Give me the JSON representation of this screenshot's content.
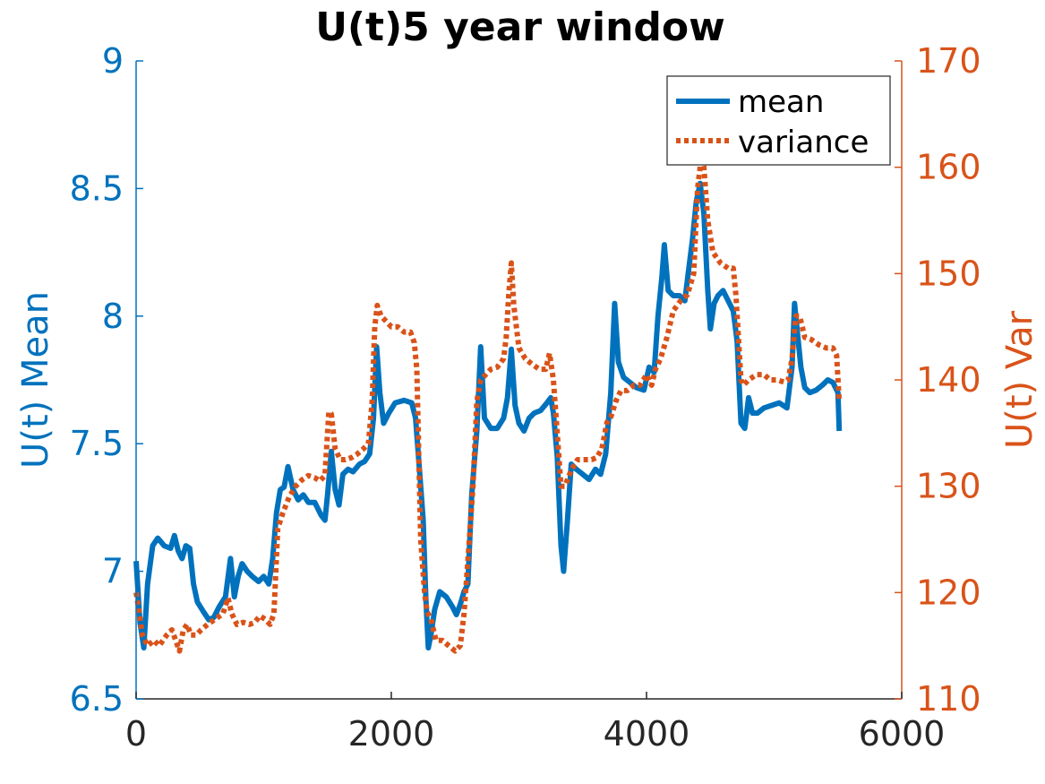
{
  "chart_data": {
    "type": "line",
    "title": "U(t)5 year window",
    "xlabel": "",
    "ylabel_left": "U(t) Mean",
    "ylabel_right": "U(t) Var",
    "xlim": [
      0,
      6000
    ],
    "ylim_left": [
      6.5,
      9
    ],
    "ylim_right": [
      110,
      170
    ],
    "xticks": [
      "0",
      "2000",
      "4000",
      "6000"
    ],
    "yticks_left": [
      "6.5",
      "7",
      "7.5",
      "8",
      "8.5",
      "9"
    ],
    "yticks_right": [
      "110",
      "120",
      "130",
      "140",
      "150",
      "160",
      "170"
    ],
    "grid": false,
    "legend_position": "top-right",
    "colors": {
      "mean": "#0072BD",
      "variance": "#D95319",
      "axis": "#262626"
    },
    "series": [
      {
        "name": "mean",
        "axis": "left",
        "style": "solid",
        "points": [
          [
            0,
            7.04
          ],
          [
            30,
            6.8
          ],
          [
            60,
            6.7
          ],
          [
            90,
            6.95
          ],
          [
            130,
            7.1
          ],
          [
            170,
            7.13
          ],
          [
            220,
            7.1
          ],
          [
            270,
            7.09
          ],
          [
            300,
            7.14
          ],
          [
            330,
            7.08
          ],
          [
            360,
            7.05
          ],
          [
            390,
            7.1
          ],
          [
            420,
            7.09
          ],
          [
            450,
            6.95
          ],
          [
            480,
            6.88
          ],
          [
            530,
            6.84
          ],
          [
            570,
            6.81
          ],
          [
            610,
            6.82
          ],
          [
            650,
            6.86
          ],
          [
            700,
            6.9
          ],
          [
            740,
            7.05
          ],
          [
            770,
            6.9
          ],
          [
            800,
            6.98
          ],
          [
            830,
            7.03
          ],
          [
            870,
            7.0
          ],
          [
            910,
            6.98
          ],
          [
            960,
            6.96
          ],
          [
            1000,
            6.98
          ],
          [
            1040,
            6.95
          ],
          [
            1070,
            7.05
          ],
          [
            1100,
            7.23
          ],
          [
            1130,
            7.32
          ],
          [
            1160,
            7.33
          ],
          [
            1190,
            7.41
          ],
          [
            1230,
            7.32
          ],
          [
            1270,
            7.28
          ],
          [
            1310,
            7.3
          ],
          [
            1350,
            7.27
          ],
          [
            1400,
            7.27
          ],
          [
            1450,
            7.22
          ],
          [
            1480,
            7.2
          ],
          [
            1500,
            7.3
          ],
          [
            1530,
            7.47
          ],
          [
            1560,
            7.32
          ],
          [
            1590,
            7.26
          ],
          [
            1620,
            7.38
          ],
          [
            1660,
            7.4
          ],
          [
            1700,
            7.39
          ],
          [
            1750,
            7.42
          ],
          [
            1790,
            7.43
          ],
          [
            1830,
            7.46
          ],
          [
            1860,
            7.6
          ],
          [
            1885,
            7.88
          ],
          [
            1910,
            7.7
          ],
          [
            1940,
            7.58
          ],
          [
            1980,
            7.62
          ],
          [
            2030,
            7.66
          ],
          [
            2100,
            7.67
          ],
          [
            2160,
            7.66
          ],
          [
            2190,
            7.6
          ],
          [
            2220,
            7.4
          ],
          [
            2250,
            7.2
          ],
          [
            2270,
            6.9
          ],
          [
            2290,
            6.7
          ],
          [
            2310,
            6.75
          ],
          [
            2340,
            6.85
          ],
          [
            2380,
            6.92
          ],
          [
            2430,
            6.9
          ],
          [
            2480,
            6.86
          ],
          [
            2510,
            6.83
          ],
          [
            2540,
            6.87
          ],
          [
            2570,
            6.92
          ],
          [
            2600,
            6.95
          ],
          [
            2630,
            7.3
          ],
          [
            2670,
            7.55
          ],
          [
            2700,
            7.88
          ],
          [
            2730,
            7.6
          ],
          [
            2780,
            7.56
          ],
          [
            2830,
            7.56
          ],
          [
            2880,
            7.6
          ],
          [
            2910,
            7.68
          ],
          [
            2940,
            7.87
          ],
          [
            2970,
            7.65
          ],
          [
            3000,
            7.58
          ],
          [
            3040,
            7.55
          ],
          [
            3080,
            7.6
          ],
          [
            3120,
            7.62
          ],
          [
            3170,
            7.63
          ],
          [
            3220,
            7.66
          ],
          [
            3250,
            7.68
          ],
          [
            3270,
            7.62
          ],
          [
            3300,
            7.45
          ],
          [
            3330,
            7.1
          ],
          [
            3350,
            7.0
          ],
          [
            3380,
            7.2
          ],
          [
            3410,
            7.42
          ],
          [
            3450,
            7.4
          ],
          [
            3500,
            7.38
          ],
          [
            3550,
            7.36
          ],
          [
            3600,
            7.4
          ],
          [
            3640,
            7.38
          ],
          [
            3680,
            7.46
          ],
          [
            3720,
            7.7
          ],
          [
            3750,
            8.05
          ],
          [
            3780,
            7.82
          ],
          [
            3820,
            7.76
          ],
          [
            3870,
            7.74
          ],
          [
            3920,
            7.72
          ],
          [
            3980,
            7.71
          ],
          [
            4020,
            7.8
          ],
          [
            4060,
            7.78
          ],
          [
            4090,
            8.0
          ],
          [
            4120,
            8.15
          ],
          [
            4140,
            8.28
          ],
          [
            4170,
            8.1
          ],
          [
            4210,
            8.08
          ],
          [
            4260,
            8.08
          ],
          [
            4300,
            8.06
          ],
          [
            4330,
            8.18
          ],
          [
            4360,
            8.3
          ],
          [
            4390,
            8.45
          ],
          [
            4420,
            8.52
          ],
          [
            4450,
            8.4
          ],
          [
            4480,
            8.1
          ],
          [
            4500,
            7.95
          ],
          [
            4530,
            8.05
          ],
          [
            4560,
            8.08
          ],
          [
            4600,
            8.1
          ],
          [
            4640,
            8.06
          ],
          [
            4680,
            8.02
          ],
          [
            4710,
            7.9
          ],
          [
            4740,
            7.58
          ],
          [
            4770,
            7.56
          ],
          [
            4800,
            7.68
          ],
          [
            4830,
            7.62
          ],
          [
            4870,
            7.62
          ],
          [
            4920,
            7.64
          ],
          [
            4980,
            7.65
          ],
          [
            5040,
            7.66
          ],
          [
            5100,
            7.64
          ],
          [
            5140,
            7.8
          ],
          [
            5160,
            8.05
          ],
          [
            5180,
            7.95
          ],
          [
            5210,
            7.8
          ],
          [
            5240,
            7.72
          ],
          [
            5280,
            7.7
          ],
          [
            5330,
            7.71
          ],
          [
            5380,
            7.73
          ],
          [
            5420,
            7.75
          ],
          [
            5460,
            7.74
          ],
          [
            5500,
            7.7
          ],
          [
            5510,
            7.55
          ]
        ]
      },
      {
        "name": "variance",
        "axis": "right",
        "style": "dotted",
        "points": [
          [
            0,
            120
          ],
          [
            20,
            118.5
          ],
          [
            50,
            116
          ],
          [
            90,
            115
          ],
          [
            140,
            115.5
          ],
          [
            180,
            115
          ],
          [
            240,
            116
          ],
          [
            280,
            116.5
          ],
          [
            310,
            115.5
          ],
          [
            340,
            114.5
          ],
          [
            370,
            116.5
          ],
          [
            400,
            117
          ],
          [
            430,
            116
          ],
          [
            470,
            116
          ],
          [
            510,
            116.5
          ],
          [
            560,
            117
          ],
          [
            620,
            117.5
          ],
          [
            680,
            118
          ],
          [
            720,
            119.5
          ],
          [
            750,
            118
          ],
          [
            790,
            117
          ],
          [
            840,
            117.2
          ],
          [
            890,
            117
          ],
          [
            930,
            117.2
          ],
          [
            970,
            117.8
          ],
          [
            1010,
            117.5
          ],
          [
            1050,
            117
          ],
          [
            1080,
            118
          ],
          [
            1110,
            126
          ],
          [
            1150,
            127.5
          ],
          [
            1200,
            129
          ],
          [
            1250,
            130
          ],
          [
            1300,
            130.6
          ],
          [
            1350,
            131
          ],
          [
            1400,
            130.8
          ],
          [
            1440,
            130.5
          ],
          [
            1480,
            131
          ],
          [
            1510,
            137
          ],
          [
            1530,
            136.8
          ],
          [
            1560,
            133.5
          ],
          [
            1600,
            132.5
          ],
          [
            1640,
            132.5
          ],
          [
            1690,
            132.7
          ],
          [
            1730,
            133
          ],
          [
            1780,
            133.5
          ],
          [
            1820,
            134
          ],
          [
            1850,
            138
          ],
          [
            1870,
            145
          ],
          [
            1890,
            147
          ],
          [
            1920,
            146
          ],
          [
            1960,
            145.5
          ],
          [
            2000,
            145
          ],
          [
            2050,
            145
          ],
          [
            2100,
            144.5
          ],
          [
            2150,
            144.5
          ],
          [
            2180,
            143.5
          ],
          [
            2200,
            141
          ],
          [
            2230,
            125
          ],
          [
            2260,
            120
          ],
          [
            2280,
            118.2
          ],
          [
            2310,
            117.5
          ],
          [
            2350,
            115.5
          ],
          [
            2400,
            115.5
          ],
          [
            2450,
            115
          ],
          [
            2500,
            114.5
          ],
          [
            2540,
            115
          ],
          [
            2570,
            118
          ],
          [
            2600,
            123
          ],
          [
            2640,
            130
          ],
          [
            2670,
            138
          ],
          [
            2700,
            140
          ],
          [
            2740,
            140.5
          ],
          [
            2780,
            141
          ],
          [
            2830,
            141.2
          ],
          [
            2880,
            142
          ],
          [
            2900,
            144
          ],
          [
            2920,
            148
          ],
          [
            2940,
            151
          ],
          [
            2960,
            147
          ],
          [
            3000,
            143
          ],
          [
            3050,
            142
          ],
          [
            3100,
            141.5
          ],
          [
            3160,
            141
          ],
          [
            3210,
            141
          ],
          [
            3240,
            142.5
          ],
          [
            3270,
            140
          ],
          [
            3300,
            135
          ],
          [
            3330,
            130
          ],
          [
            3360,
            130
          ],
          [
            3410,
            131.5
          ],
          [
            3460,
            132.5
          ],
          [
            3520,
            132.5
          ],
          [
            3570,
            132.5
          ],
          [
            3610,
            132.7
          ],
          [
            3650,
            133.5
          ],
          [
            3690,
            136
          ],
          [
            3720,
            136.5
          ],
          [
            3760,
            138
          ],
          [
            3800,
            139
          ],
          [
            3850,
            139
          ],
          [
            3900,
            139.5
          ],
          [
            3950,
            139.5
          ],
          [
            4000,
            140.5
          ],
          [
            4040,
            139.5
          ],
          [
            4070,
            141
          ],
          [
            4110,
            142
          ],
          [
            4160,
            144
          ],
          [
            4210,
            146.5
          ],
          [
            4270,
            147.5
          ],
          [
            4320,
            148
          ],
          [
            4370,
            150
          ],
          [
            4400,
            158
          ],
          [
            4430,
            161
          ],
          [
            4450,
            160
          ],
          [
            4480,
            155
          ],
          [
            4520,
            152
          ],
          [
            4580,
            151
          ],
          [
            4640,
            150.5
          ],
          [
            4680,
            150.5
          ],
          [
            4700,
            148
          ],
          [
            4740,
            140
          ],
          [
            4760,
            139.5
          ],
          [
            4800,
            140
          ],
          [
            4860,
            140.5
          ],
          [
            4920,
            140.5
          ],
          [
            4970,
            140
          ],
          [
            5020,
            140
          ],
          [
            5080,
            139.8
          ],
          [
            5110,
            140
          ],
          [
            5140,
            142
          ],
          [
            5170,
            146
          ],
          [
            5200,
            146
          ],
          [
            5240,
            144
          ],
          [
            5290,
            143.8
          ],
          [
            5350,
            143.3
          ],
          [
            5410,
            143
          ],
          [
            5460,
            143
          ],
          [
            5490,
            142.3
          ],
          [
            5510,
            138
          ]
        ]
      }
    ]
  }
}
